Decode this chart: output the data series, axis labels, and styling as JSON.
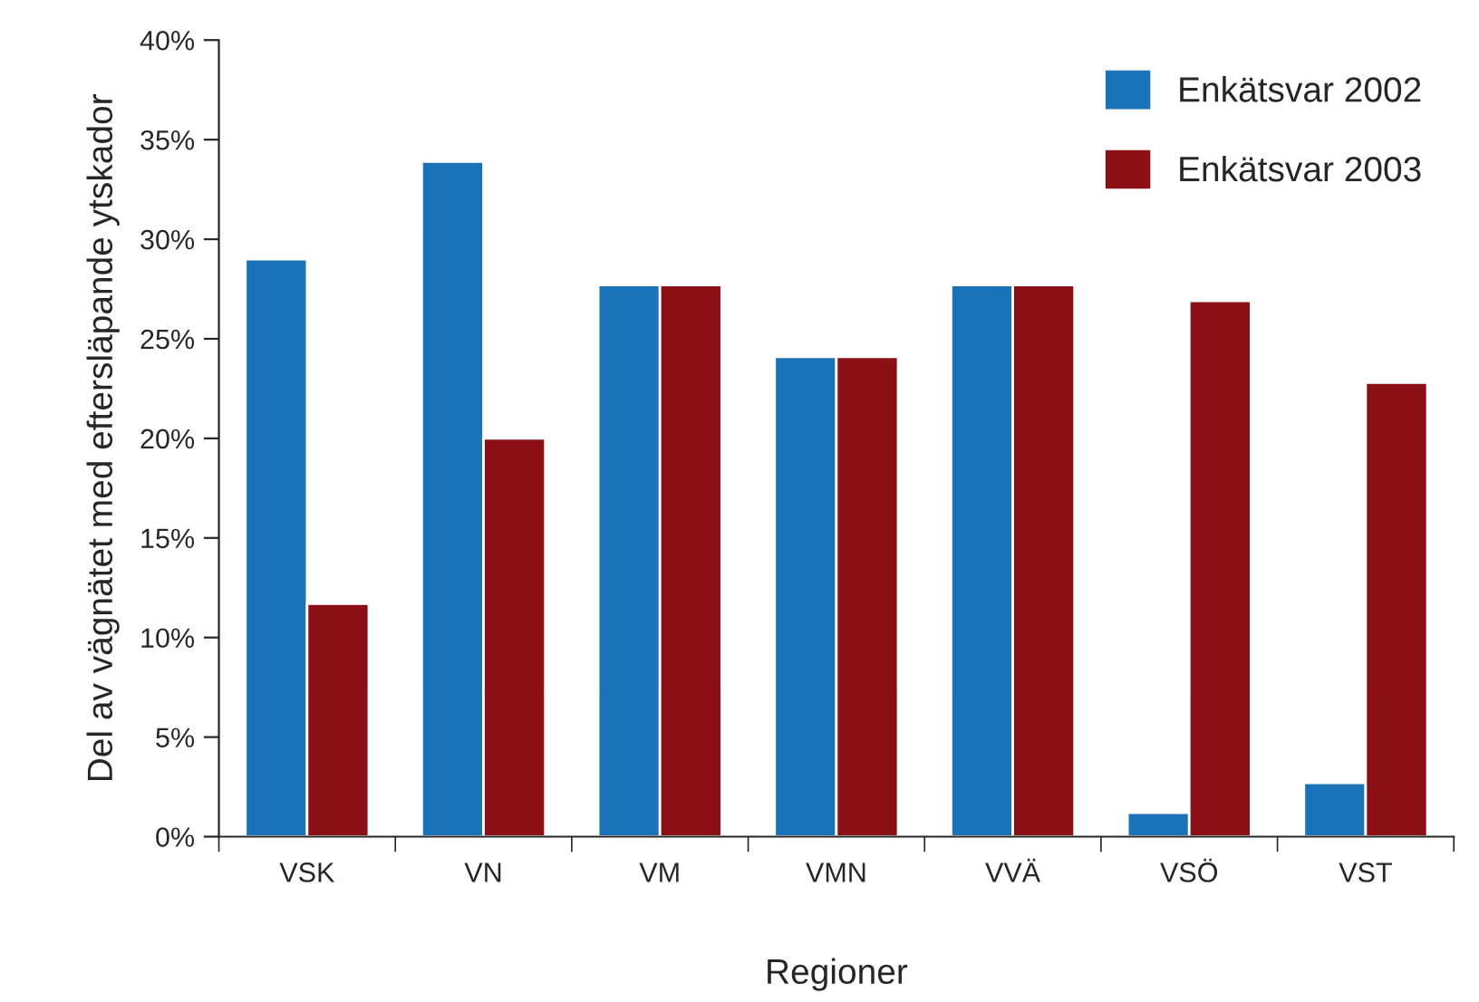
{
  "chart_data": {
    "type": "bar",
    "xlabel": "Regioner",
    "ylabel": "Del av vägnätet med eftersläpande ytskador",
    "categories": [
      "VSK",
      "VN",
      "VM",
      "VMN",
      "VVÄ",
      "VSÖ",
      "VST"
    ],
    "series": [
      {
        "name": "Enkätsvar 2002",
        "color": "#1a72b8",
        "values": [
          29.0,
          33.9,
          27.7,
          24.1,
          27.7,
          1.2,
          2.7
        ]
      },
      {
        "name": "Enkätsvar 2003",
        "color": "#8b1016",
        "values": [
          11.7,
          20.0,
          27.7,
          24.1,
          27.7,
          26.9,
          22.8
        ]
      }
    ],
    "ylim": [
      0,
      40
    ],
    "yticks": [
      {
        "value": 0,
        "label": "0%"
      },
      {
        "value": 5,
        "label": "5%"
      },
      {
        "value": 10,
        "label": "10%"
      },
      {
        "value": 15,
        "label": "15%"
      },
      {
        "value": 20,
        "label": "20%"
      },
      {
        "value": 25,
        "label": "25%"
      },
      {
        "value": 30,
        "label": "30%"
      },
      {
        "value": 35,
        "label": "35%"
      },
      {
        "value": 40,
        "label": "40%"
      }
    ],
    "grid": false,
    "legend": "top right"
  }
}
